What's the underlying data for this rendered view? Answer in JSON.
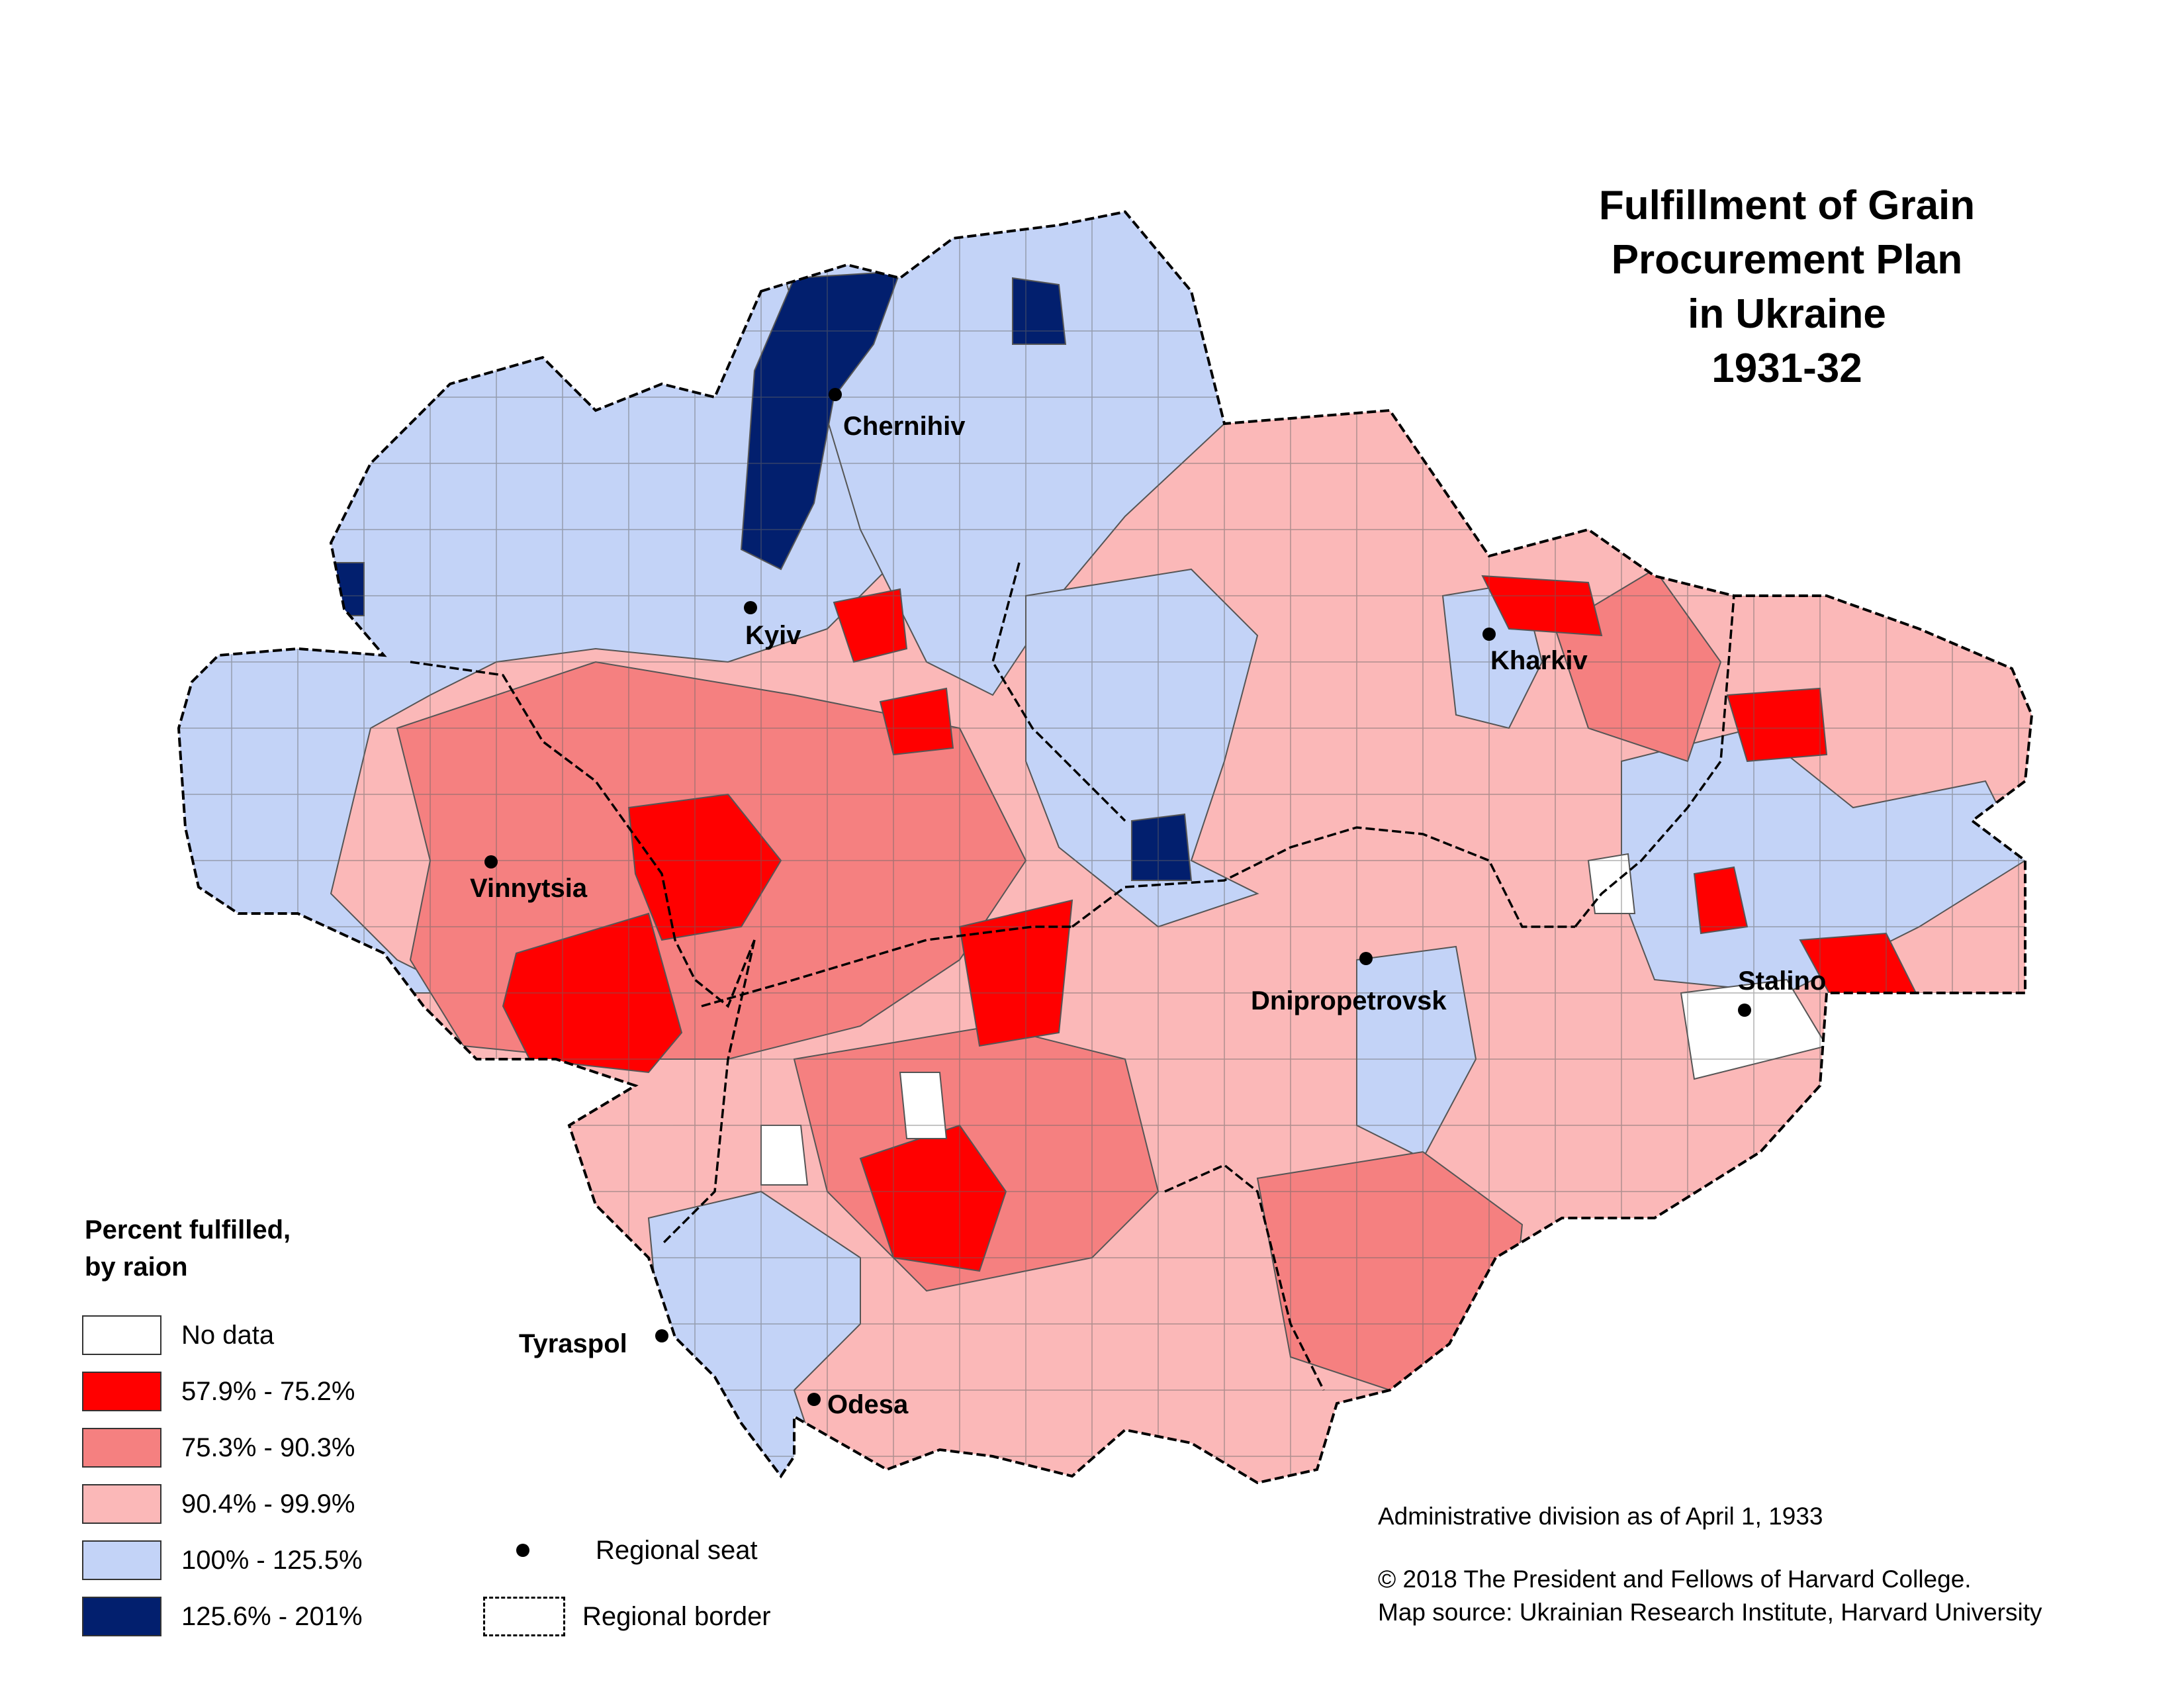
{
  "title": {
    "line1": "Fulfillment of Grain",
    "line2": "Procurement Plan",
    "line3": "in Ukraine",
    "line4": "1931-32"
  },
  "colors": {
    "no_data": "#ffffff",
    "c1": "#ff0000",
    "c2": "#f58080",
    "c3": "#fbb8b8",
    "c4": "#c3d3f7",
    "c5": "#021f6e",
    "border": "#333333"
  },
  "cities": [
    {
      "name": "Chernihiv"
    },
    {
      "name": "Kyiv"
    },
    {
      "name": "Kharkiv"
    },
    {
      "name": "Vinnytsia"
    },
    {
      "name": "Dnipropetrovsk"
    },
    {
      "name": "Stalino"
    },
    {
      "name": "Tyraspol"
    },
    {
      "name": "Odesa"
    }
  ],
  "legend": {
    "title_line1": "Percent fulfilled,",
    "title_line2": "by raion",
    "items": [
      {
        "label": "No data",
        "color": "#ffffff"
      },
      {
        "label": "57.9% - 75.2%",
        "color": "#ff0000"
      },
      {
        "label": "75.3% - 90.3%",
        "color": "#f58080"
      },
      {
        "label": "90.4% - 99.9%",
        "color": "#fbb8b8"
      },
      {
        "label": "100% - 125.5%",
        "color": "#c3d3f7"
      },
      {
        "label": "125.6% - 201%",
        "color": "#021f6e"
      }
    ],
    "symbols": {
      "regional_seat": "Regional seat",
      "regional_border": "Regional border"
    }
  },
  "credits": {
    "line1": "Administrative division as of April 1, 1933",
    "line2": "© 2018 The President and Fellows of Harvard College.",
    "line3": "Map source: Ukrainian Research Institute, Harvard University"
  }
}
